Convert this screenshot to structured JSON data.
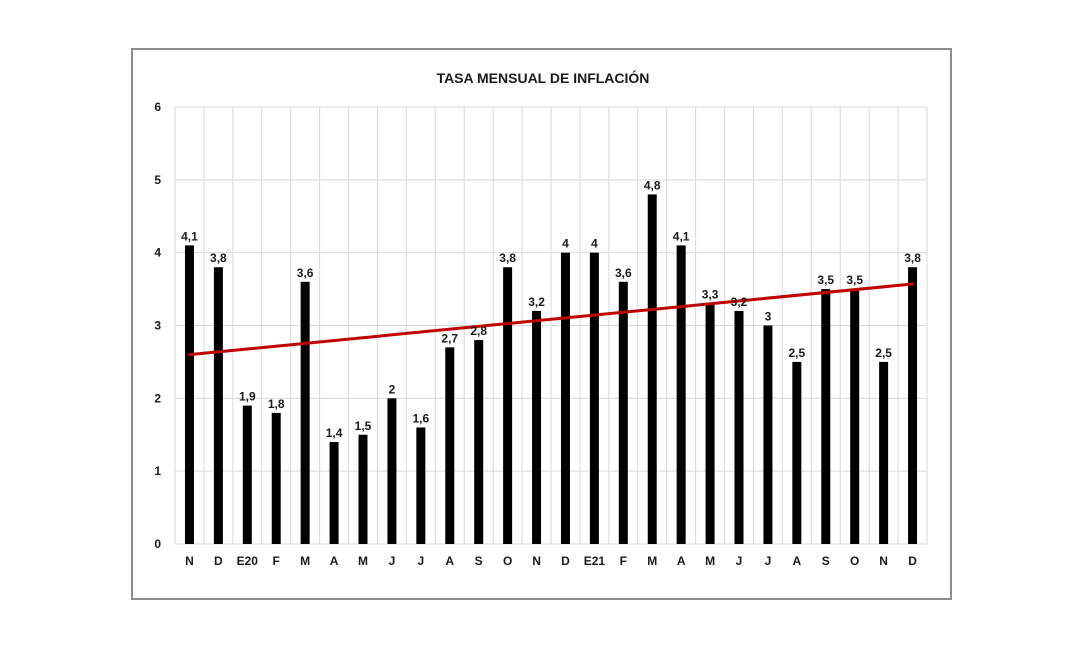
{
  "chart_data": {
    "type": "bar",
    "title": "TASA MENSUAL  DE INFLACIÓN",
    "categories": [
      "N",
      "D",
      "E20",
      "F",
      "M",
      "A",
      "M",
      "J",
      "J",
      "A",
      "S",
      "O",
      "N",
      "D",
      "E21",
      "F",
      "M",
      "A",
      "M",
      "J",
      "J",
      "A",
      "S",
      "O",
      "N",
      "D"
    ],
    "values": [
      4.1,
      3.8,
      1.9,
      1.8,
      3.6,
      1.4,
      1.5,
      2,
      1.6,
      2.7,
      2.8,
      3.8,
      3.2,
      4,
      4,
      3.6,
      4.8,
      4.1,
      3.3,
      3.2,
      3,
      2.5,
      3.5,
      3.5,
      2.5,
      3.8
    ],
    "data_labels": [
      "4,1",
      "3,8",
      "1,9",
      "1,8",
      "3,6",
      "1,4",
      "1,5",
      "2",
      "1,6",
      "2,7",
      "2,8",
      "3,8",
      "3,2",
      "4",
      "4",
      "3,6",
      "4,8",
      "4,1",
      "3,3",
      "3,2",
      "3",
      "2,5",
      "3,5",
      "3,5",
      "2,5",
      "3,8"
    ],
    "y_ticks": [
      "0",
      "1",
      "2",
      "3",
      "4",
      "5",
      "6"
    ],
    "ylim": [
      0,
      6
    ],
    "grid": true,
    "trendline": {
      "start": 2.6,
      "end": 3.57,
      "color": "#c00000"
    },
    "bar_color": "#000000",
    "grid_color": "#d9d9d9"
  }
}
